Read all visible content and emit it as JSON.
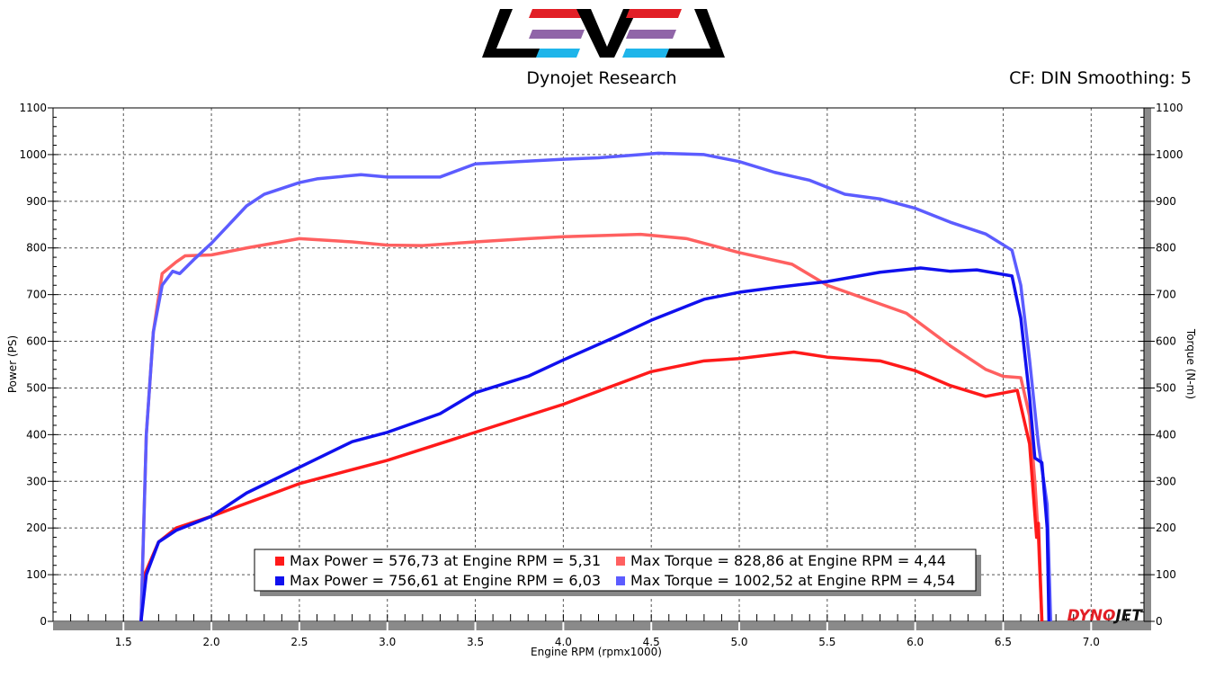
{
  "header": {
    "brand": "LEVEL",
    "subtitle": "Dynojet Research",
    "settings": "CF: DIN Smoothing: 5",
    "watermark": "DYNOJET"
  },
  "colors": {
    "power1": "#ff1a1a",
    "torque1": "#ff6060",
    "power2": "#1010ee",
    "torque2": "#5c5cff"
  },
  "chart_data": {
    "type": "line",
    "xlabel": "Engine RPM (rpmx1000)",
    "ylabel": "Power (PS)",
    "y2label": "Torque (N-m)",
    "xlim": [
      1.1,
      7.3
    ],
    "ylim": [
      0,
      1100
    ],
    "y2lim": [
      0,
      1100
    ],
    "xticks": [
      "1.5",
      "2.0",
      "2.5",
      "3.0",
      "3.5",
      "4.0",
      "4.5",
      "5.0",
      "5.5",
      "6.0",
      "6.5",
      "7.0"
    ],
    "yticks": [
      "0",
      "100",
      "200",
      "300",
      "400",
      "500",
      "600",
      "700",
      "800",
      "900",
      "1000",
      "1100"
    ],
    "grid": true,
    "legend_position": "bottom-center",
    "series": [
      {
        "name": "Max Power = 576,73 at Engine RPM = 5,31",
        "axis": "left",
        "color": "#ff1a1a",
        "points": [
          [
            1.6,
            0
          ],
          [
            1.62,
            100
          ],
          [
            1.7,
            170
          ],
          [
            1.8,
            200
          ],
          [
            2.0,
            225
          ],
          [
            2.5,
            295
          ],
          [
            3.0,
            345
          ],
          [
            3.5,
            405
          ],
          [
            4.0,
            465
          ],
          [
            4.5,
            535
          ],
          [
            4.8,
            558
          ],
          [
            5.0,
            563
          ],
          [
            5.31,
            577
          ],
          [
            5.5,
            566
          ],
          [
            5.8,
            558
          ],
          [
            6.0,
            537
          ],
          [
            6.2,
            505
          ],
          [
            6.4,
            482
          ],
          [
            6.58,
            495
          ],
          [
            6.65,
            380
          ],
          [
            6.69,
            180
          ],
          [
            6.7,
            210
          ],
          [
            6.72,
            0
          ]
        ]
      },
      {
        "name": "Max Torque = 828,86 at Engine RPM = 4,44",
        "axis": "right",
        "color": "#ff6060",
        "points": [
          [
            1.6,
            0
          ],
          [
            1.63,
            400
          ],
          [
            1.67,
            620
          ],
          [
            1.72,
            745
          ],
          [
            1.8,
            770
          ],
          [
            1.85,
            783
          ],
          [
            2.0,
            785
          ],
          [
            2.2,
            800
          ],
          [
            2.5,
            820
          ],
          [
            2.8,
            813
          ],
          [
            3.0,
            806
          ],
          [
            3.2,
            805
          ],
          [
            3.5,
            813
          ],
          [
            3.8,
            820
          ],
          [
            4.0,
            824
          ],
          [
            4.44,
            829
          ],
          [
            4.7,
            820
          ],
          [
            5.0,
            790
          ],
          [
            5.3,
            765
          ],
          [
            5.5,
            720
          ],
          [
            5.8,
            680
          ],
          [
            5.95,
            660
          ],
          [
            6.2,
            590
          ],
          [
            6.4,
            540
          ],
          [
            6.5,
            525
          ],
          [
            6.6,
            522
          ],
          [
            6.65,
            440
          ],
          [
            6.68,
            300
          ],
          [
            6.7,
            180
          ],
          [
            6.72,
            0
          ]
        ]
      },
      {
        "name": "Max Power = 756,61 at Engine RPM = 6,03",
        "axis": "left",
        "color": "#1010ee",
        "points": [
          [
            1.6,
            0
          ],
          [
            1.63,
            100
          ],
          [
            1.7,
            170
          ],
          [
            1.8,
            195
          ],
          [
            2.0,
            225
          ],
          [
            2.2,
            275
          ],
          [
            2.5,
            330
          ],
          [
            2.8,
            385
          ],
          [
            3.0,
            405
          ],
          [
            3.3,
            445
          ],
          [
            3.5,
            490
          ],
          [
            3.8,
            525
          ],
          [
            4.0,
            560
          ],
          [
            4.3,
            610
          ],
          [
            4.5,
            645
          ],
          [
            4.8,
            690
          ],
          [
            5.0,
            705
          ],
          [
            5.2,
            715
          ],
          [
            5.5,
            728
          ],
          [
            5.8,
            748
          ],
          [
            6.03,
            757
          ],
          [
            6.2,
            750
          ],
          [
            6.35,
            753
          ],
          [
            6.55,
            740
          ],
          [
            6.6,
            650
          ],
          [
            6.65,
            480
          ],
          [
            6.68,
            350
          ],
          [
            6.72,
            340
          ],
          [
            6.75,
            200
          ],
          [
            6.76,
            0
          ]
        ]
      },
      {
        "name": "Max Torque = 1002,52 at Engine RPM = 4,54",
        "axis": "right",
        "color": "#5c5cff",
        "points": [
          [
            1.6,
            0
          ],
          [
            1.63,
            400
          ],
          [
            1.67,
            620
          ],
          [
            1.72,
            720
          ],
          [
            1.78,
            750
          ],
          [
            1.82,
            745
          ],
          [
            1.9,
            775
          ],
          [
            2.0,
            810
          ],
          [
            2.1,
            850
          ],
          [
            2.2,
            890
          ],
          [
            2.3,
            915
          ],
          [
            2.5,
            940
          ],
          [
            2.6,
            948
          ],
          [
            2.85,
            957
          ],
          [
            3.0,
            952
          ],
          [
            3.3,
            952
          ],
          [
            3.5,
            980
          ],
          [
            4.0,
            990
          ],
          [
            4.2,
            993
          ],
          [
            4.54,
            1003
          ],
          [
            4.8,
            1000
          ],
          [
            5.0,
            985
          ],
          [
            5.2,
            962
          ],
          [
            5.4,
            945
          ],
          [
            5.6,
            915
          ],
          [
            5.8,
            905
          ],
          [
            6.0,
            885
          ],
          [
            6.2,
            855
          ],
          [
            6.4,
            830
          ],
          [
            6.55,
            795
          ],
          [
            6.6,
            720
          ],
          [
            6.65,
            560
          ],
          [
            6.7,
            380
          ],
          [
            6.75,
            250
          ],
          [
            6.77,
            0
          ]
        ]
      }
    ]
  }
}
